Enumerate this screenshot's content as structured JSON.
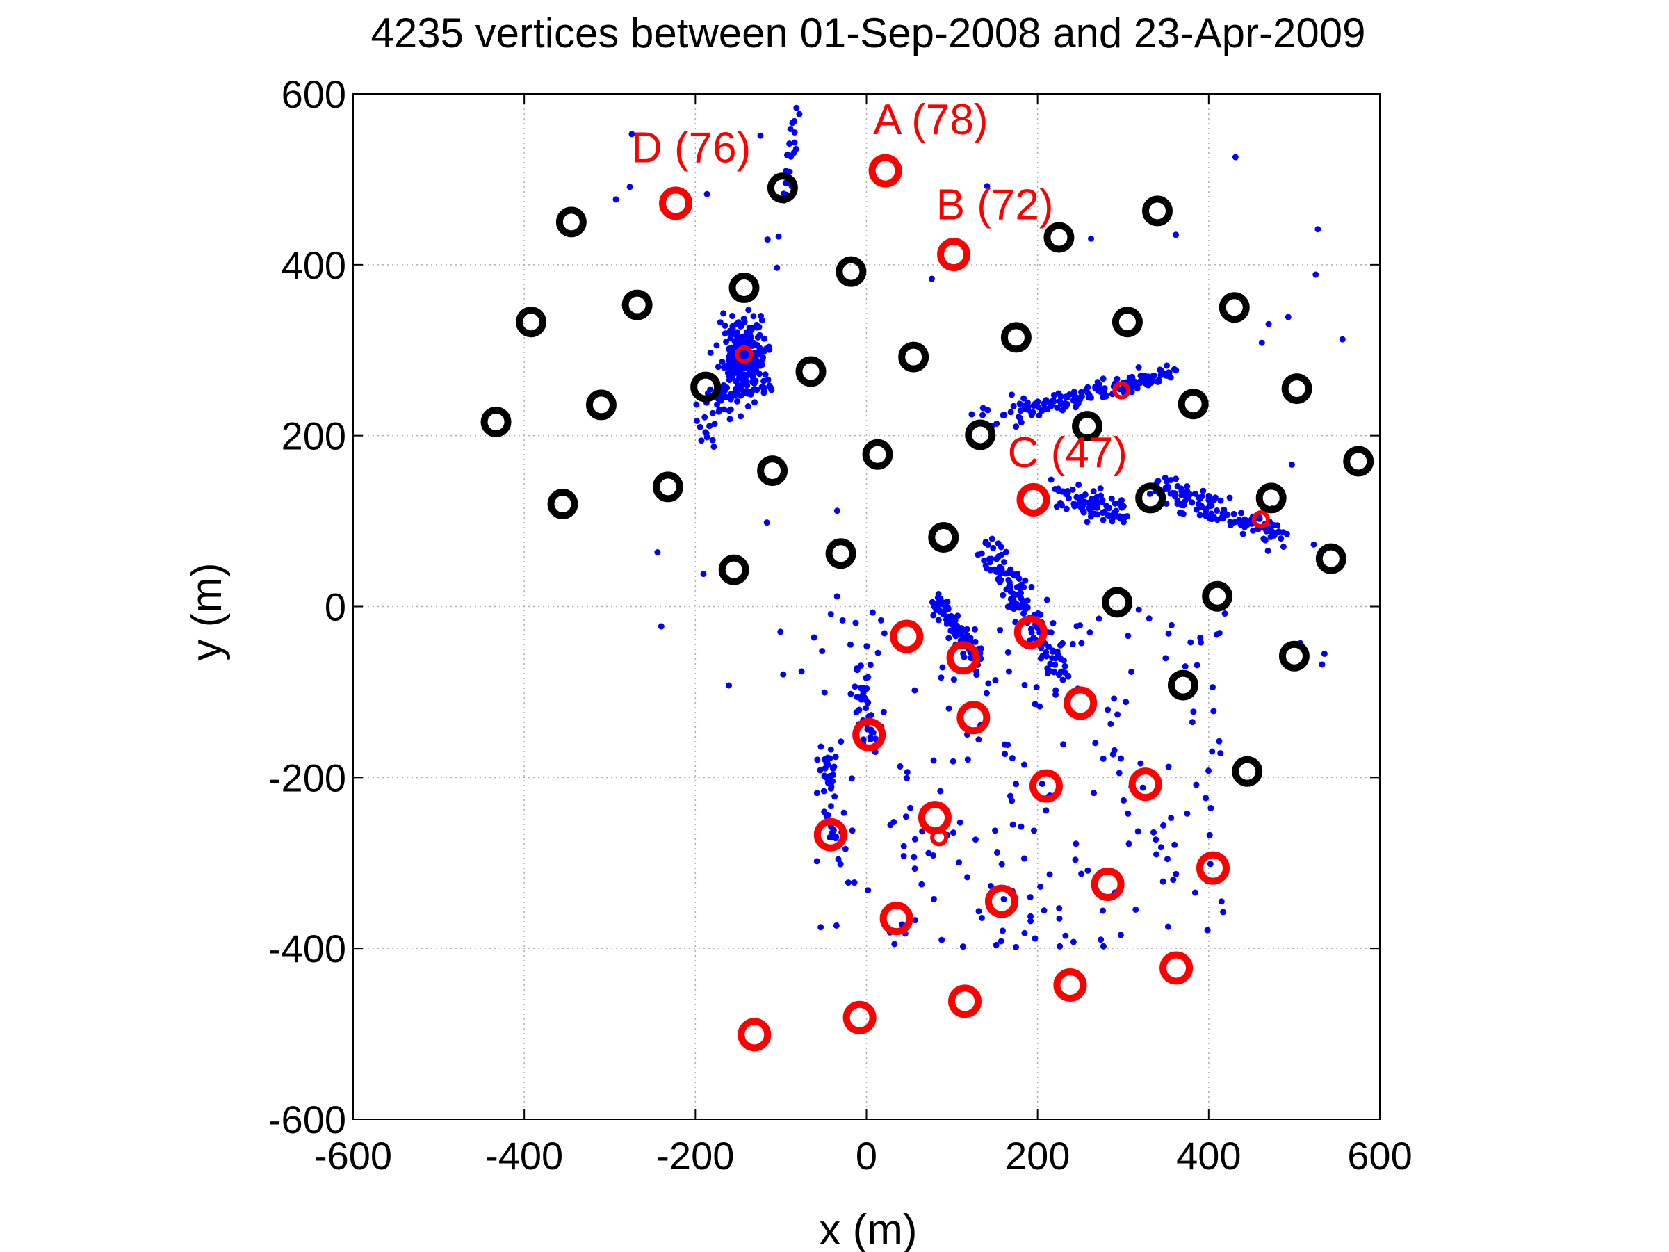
{
  "chart_data": {
    "type": "scatter",
    "title": "4235 vertices between 01-Sep-2008 and 23-Apr-2009",
    "xlabel": "x (m)",
    "ylabel": "y (m)",
    "xlim": [
      -600,
      600
    ],
    "ylim": [
      -600,
      600
    ],
    "x_ticks": [
      -600,
      -400,
      -200,
      0,
      200,
      400,
      600
    ],
    "y_ticks": [
      -600,
      -400,
      -200,
      0,
      200,
      400,
      600
    ],
    "x_tick_labels": [
      "-600",
      "-400",
      "-200",
      "0",
      "200",
      "400",
      "600"
    ],
    "y_tick_labels": [
      "-600",
      "-400",
      "-200",
      "0",
      "200",
      "400",
      "600"
    ],
    "grid": true,
    "colors": {
      "black_wells": "#000000",
      "red_wells": "#ff0000",
      "vertices": "#0000ff"
    },
    "black_wells": [
      [
        -345,
        450
      ],
      [
        -98,
        490
      ],
      [
        -18,
        392
      ],
      [
        -143,
        373
      ],
      [
        -268,
        353
      ],
      [
        -392,
        333
      ],
      [
        -188,
        257
      ],
      [
        -65,
        275
      ],
      [
        55,
        292
      ],
      [
        175,
        315
      ],
      [
        225,
        432
      ],
      [
        340,
        463
      ],
      [
        305,
        333
      ],
      [
        430,
        350
      ],
      [
        503,
        255
      ],
      [
        382,
        237
      ],
      [
        258,
        211
      ],
      [
        133,
        201
      ],
      [
        13,
        178
      ],
      [
        -110,
        159
      ],
      [
        -232,
        140
      ],
      [
        -310,
        236
      ],
      [
        -433,
        216
      ],
      [
        -355,
        120
      ],
      [
        -155,
        43
      ],
      [
        -30,
        62
      ],
      [
        90,
        81
      ],
      [
        293,
        5
      ],
      [
        410,
        12
      ],
      [
        473,
        127
      ],
      [
        332,
        127
      ],
      [
        575,
        170
      ],
      [
        543,
        56
      ],
      [
        500,
        -58
      ],
      [
        370,
        -92
      ],
      [
        445,
        -193
      ]
    ],
    "red_wells_large": [
      [
        22,
        510
      ],
      [
        102,
        412
      ],
      [
        -223,
        472
      ],
      [
        195,
        125
      ],
      [
        47,
        -35
      ],
      [
        113,
        -60
      ],
      [
        192,
        -30
      ],
      [
        250,
        -113
      ],
      [
        125,
        -130
      ],
      [
        3,
        -150
      ],
      [
        210,
        -210
      ],
      [
        326,
        -208
      ],
      [
        -42,
        -267
      ],
      [
        80,
        -247
      ],
      [
        405,
        -306
      ],
      [
        282,
        -325
      ],
      [
        158,
        -345
      ],
      [
        35,
        -365
      ],
      [
        238,
        -443
      ],
      [
        362,
        -423
      ],
      [
        115,
        -462
      ],
      [
        -8,
        -481
      ],
      [
        -131,
        -501
      ]
    ],
    "red_wells_small": [
      [
        -143,
        295
      ],
      [
        298,
        253
      ],
      [
        461,
        102
      ],
      [
        85,
        -270
      ]
    ],
    "annotations": [
      {
        "text": "A (78)",
        "x": 75,
        "y": 553
      },
      {
        "text": "B (72)",
        "x": 150,
        "y": 453
      },
      {
        "text": "C (47)",
        "x": 235,
        "y": 163
      },
      {
        "text": "D (76)",
        "x": -205,
        "y": 520
      }
    ],
    "vertex_clusters": [
      {
        "name": "NW cluster",
        "cx": -145,
        "cy": 285,
        "sx": 14,
        "sy": 22,
        "n": 260
      },
      {
        "name": "NW tail",
        "from": [
          -190,
          190
        ],
        "to": [
          -125,
          345
        ],
        "n": 60,
        "jitter": 10
      },
      {
        "name": "North streak",
        "from": [
          -105,
          420
        ],
        "to": [
          -82,
          590
        ],
        "n": 25,
        "jitter": 4
      },
      {
        "name": "East streak 1",
        "from": [
          180,
          230
        ],
        "to": [
          360,
          272
        ],
        "n": 140,
        "jitter": 5
      },
      {
        "name": "East streak 1b",
        "from": [
          120,
          215
        ],
        "to": [
          180,
          232
        ],
        "n": 15,
        "jitter": 6
      },
      {
        "name": "East streak 2",
        "from": [
          230,
          130
        ],
        "to": [
          300,
          110
        ],
        "n": 90,
        "jitter": 8
      },
      {
        "name": "East streak 3",
        "from": [
          340,
          140
        ],
        "to": [
          490,
          82
        ],
        "n": 130,
        "jitter": 8
      },
      {
        "name": "South streak 1",
        "from": [
          140,
          75
        ],
        "to": [
          230,
          -80
        ],
        "n": 140,
        "jitter": 8
      },
      {
        "name": "South streak 2",
        "from": [
          85,
          10
        ],
        "to": [
          130,
          -70
        ],
        "n": 90,
        "jitter": 6
      },
      {
        "name": "South streak 3",
        "from": [
          -10,
          -80
        ],
        "to": [
          10,
          -160
        ],
        "n": 40,
        "jitter": 5
      },
      {
        "name": "South streak 4",
        "from": [
          -48,
          -170
        ],
        "to": [
          -38,
          -270
        ],
        "n": 40,
        "jitter": 4
      },
      {
        "name": "Sparse south",
        "xmin": -60,
        "xmax": 420,
        "ymin": -400,
        "ymax": 0,
        "n": 230
      },
      {
        "name": "Sparse scatter",
        "xmin": -300,
        "xmax": 580,
        "ymin": -100,
        "ymax": 600,
        "n": 40
      }
    ]
  }
}
